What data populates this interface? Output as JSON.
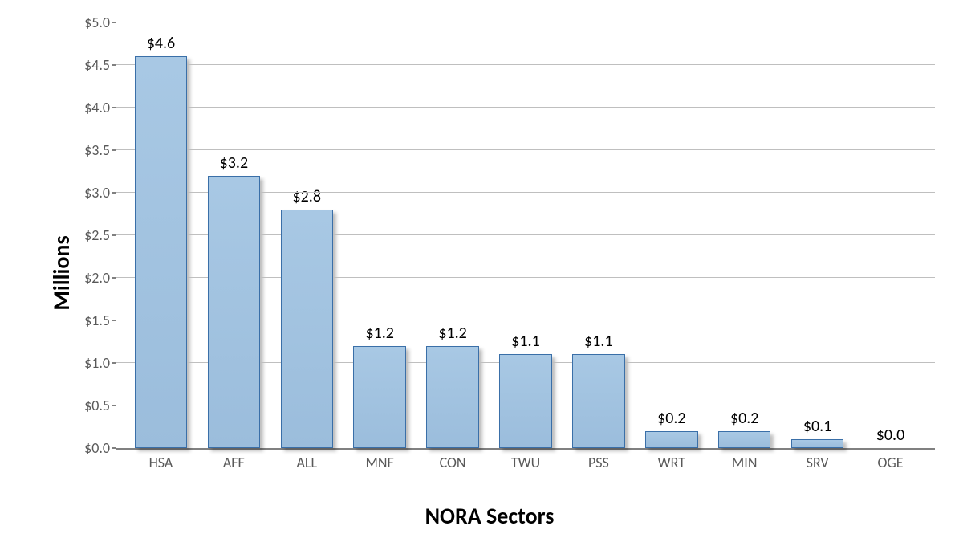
{
  "chart": {
    "type": "bar",
    "y_axis_title": "Millions",
    "x_axis_title": "NORA Sectors",
    "ylim": [
      0.0,
      5.0
    ],
    "ytick_step": 0.5,
    "y_ticks": [
      "$0.0",
      "$0.5",
      "$1.0",
      "$1.5",
      "$2.0",
      "$2.5",
      "$3.0",
      "$3.5",
      "$4.0",
      "$4.5",
      "$5.0"
    ],
    "categories": [
      "HSA",
      "AFF",
      "ALL",
      "MNF",
      "CON",
      "TWU",
      "PSS",
      "WRT",
      "MIN",
      "SRV",
      "OGE"
    ],
    "values": [
      4.6,
      3.2,
      2.8,
      1.2,
      1.2,
      1.1,
      1.1,
      0.2,
      0.2,
      0.1,
      0.0
    ],
    "data_labels": [
      "$4.6",
      "$3.2",
      "$2.8",
      "$1.2",
      "$1.2",
      "$1.1",
      "$1.1",
      "$0.2",
      "$0.2",
      "$0.1",
      "$0.0"
    ],
    "bar_color": "#a8c8e4",
    "bar_border_color": "#3a6fa8",
    "grid_color": "#bfbfbf",
    "axis_line_color": "#808080",
    "background_color": "#ffffff",
    "tick_label_color": "#595959",
    "title_fontsize": 28,
    "tick_fontsize": 18,
    "data_label_fontsize": 20,
    "bar_width_ratio": 0.72,
    "shadow": true
  }
}
